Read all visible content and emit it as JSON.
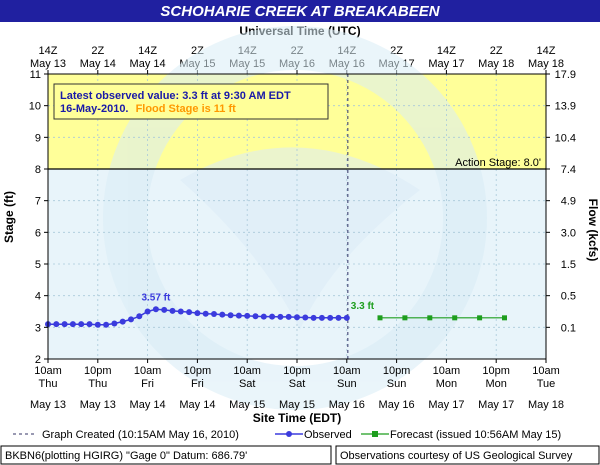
{
  "chart_data": {
    "type": "line",
    "title": "SCHOHARIE CREEK AT BREAKABEEN",
    "top_axis_title": "Universal Time (UTC)",
    "xlabel": "Site Time (EDT)",
    "ylabel": "Stage (ft)",
    "y2label": "Flow (kcfs)",
    "x_range_hours": [
      0,
      120
    ],
    "ylim": [
      2,
      11
    ],
    "top_ticks": [
      {
        "line1": "14Z",
        "line2": "May 13"
      },
      {
        "line1": "2Z",
        "line2": "May 14"
      },
      {
        "line1": "14Z",
        "line2": "May 14"
      },
      {
        "line1": "2Z",
        "line2": "May 15"
      },
      {
        "line1": "14Z",
        "line2": "May 15"
      },
      {
        "line1": "2Z",
        "line2": "May 16"
      },
      {
        "line1": "14Z",
        "line2": "May 16"
      },
      {
        "line1": "2Z",
        "line2": "May 17"
      },
      {
        "line1": "14Z",
        "line2": "May 17"
      },
      {
        "line1": "2Z",
        "line2": "May 18"
      },
      {
        "line1": "14Z",
        "line2": "May 18"
      }
    ],
    "bottom_ticks": [
      {
        "line1": "10am",
        "line2": "Thu",
        "line3": "May 13"
      },
      {
        "line1": "10pm",
        "line2": "Thu",
        "line3": "May 13"
      },
      {
        "line1": "10am",
        "line2": "Fri",
        "line3": "May 14"
      },
      {
        "line1": "10pm",
        "line2": "Fri",
        "line3": "May 14"
      },
      {
        "line1": "10am",
        "line2": "Sat",
        "line3": "May 15"
      },
      {
        "line1": "10pm",
        "line2": "Sat",
        "line3": "May 15"
      },
      {
        "line1": "10am",
        "line2": "Sun",
        "line3": "May 16"
      },
      {
        "line1": "10pm",
        "line2": "Sun",
        "line3": "May 16"
      },
      {
        "line1": "10am",
        "line2": "Mon",
        "line3": "May 17"
      },
      {
        "line1": "10pm",
        "line2": "Mon",
        "line3": "May 17"
      },
      {
        "line1": "10am",
        "line2": "Tue",
        "line3": "May 18"
      }
    ],
    "y_ticks": [
      "2",
      "3",
      "4",
      "5",
      "6",
      "7",
      "8",
      "9",
      "10",
      "11"
    ],
    "flow_ticks": [
      {
        "y": 11.0,
        "label": "17.9"
      },
      {
        "y": 10.0,
        "label": "13.9"
      },
      {
        "y": 9.0,
        "label": "10.4"
      },
      {
        "y": 8.0,
        "label": "7.4"
      },
      {
        "y": 7.0,
        "label": "4.9"
      },
      {
        "y": 6.0,
        "label": "3.0"
      },
      {
        "y": 5.0,
        "label": "1.5"
      },
      {
        "y": 4.0,
        "label": "0.5"
      },
      {
        "y": 3.0,
        "label": "0.1"
      }
    ],
    "flood_stage": 11,
    "action_stage": 8.0,
    "action_stage_label": "Action Stage: 8.0'",
    "created_hour": 72.25,
    "observed": {
      "name": "Observed",
      "color": "#3b3bdd",
      "x": [
        0,
        2,
        4,
        6,
        8,
        10,
        12,
        14,
        16,
        18,
        20,
        22,
        24,
        26,
        28,
        30,
        32,
        34,
        36,
        38,
        40,
        42,
        44,
        46,
        48,
        50,
        52,
        54,
        56,
        58,
        60,
        62,
        64,
        66,
        68,
        70,
        72
      ],
      "y": [
        3.1,
        3.1,
        3.1,
        3.1,
        3.1,
        3.1,
        3.08,
        3.08,
        3.12,
        3.18,
        3.25,
        3.35,
        3.5,
        3.57,
        3.55,
        3.52,
        3.5,
        3.48,
        3.45,
        3.43,
        3.42,
        3.4,
        3.38,
        3.37,
        3.36,
        3.35,
        3.34,
        3.34,
        3.33,
        3.33,
        3.32,
        3.31,
        3.3,
        3.3,
        3.3,
        3.3,
        3.3
      ]
    },
    "forecast": {
      "name": "Forecast",
      "color": "#1e9e1e",
      "x": [
        80,
        86,
        92,
        98,
        104,
        110
      ],
      "y": [
        3.3,
        3.3,
        3.3,
        3.3,
        3.3,
        3.3
      ]
    },
    "annotations": {
      "peak_label": "3.57 ft",
      "peak_x": 26,
      "peak_y": 3.57,
      "latest_label": "3.3 ft",
      "latest_x": 72,
      "latest_y": 3.3
    },
    "info_box": {
      "line1": "Latest observed value: 3.3 ft at 9:30 AM EDT",
      "line2a": "16-May-2010.",
      "line2b": "Flood Stage is 11 ft"
    },
    "legend": {
      "created": "Graph Created (10:15AM May 16, 2010)",
      "observed": "Observed",
      "forecast": "Forecast (issued 10:56AM May 15)"
    },
    "footer": {
      "left": "BKBN6(plotting HGIRG) \"Gage 0\" Datum: 686.79'",
      "right": "Observations courtesy of US Geological Survey"
    },
    "colors": {
      "title_bar": "#2020a0",
      "flood_zone": "#ffff99",
      "normal_zone": "#e8f4fa",
      "observed": "#3b3bdd",
      "forecast": "#1e9e1e",
      "flood_text": "#ff9900",
      "info_text": "#1a1aa8"
    }
  }
}
